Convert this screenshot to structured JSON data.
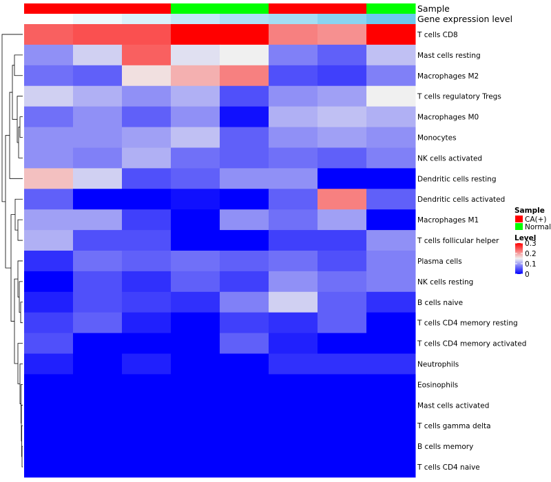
{
  "chart_data": {
    "type": "heatmap",
    "annotation_labels": [
      "Sample",
      "Gene expression level"
    ],
    "sample_groups": [
      "CA(+)",
      "CA(+)",
      "CA(+)",
      "Normal",
      "Normal",
      "CA(+)",
      "CA(+)",
      "Normal"
    ],
    "gene_expression_level": [
      0.0,
      0.12,
      0.25,
      0.4,
      0.55,
      0.62,
      0.8,
      1.0
    ],
    "rows": [
      "T cells CD8",
      "Mast cells resting",
      "Macrophages M2",
      "T cells regulatory  Tregs",
      "Macrophages M0",
      "Monocytes",
      "NK cells activated",
      "Dendritic cells resting",
      "Dendritic cells activated",
      "Macrophages M1",
      "T cells follicular helper",
      "Plasma cells",
      "NK cells resting",
      "B cells naive",
      "T cells CD4 memory resting",
      "T cells CD4 memory activated",
      "Neutrophils",
      "Eosinophils",
      "Mast cells activated",
      "T cells gamma delta",
      "B cells memory",
      "T cells CD4 naive"
    ],
    "values": [
      [
        0.24,
        0.25,
        0.25,
        0.3,
        0.3,
        0.22,
        0.21,
        0.3
      ],
      [
        0.09,
        0.13,
        0.24,
        0.14,
        0.15,
        0.08,
        0.06,
        0.12
      ],
      [
        0.07,
        0.06,
        0.16,
        0.19,
        0.22,
        0.05,
        0.04,
        0.08
      ],
      [
        0.13,
        0.11,
        0.09,
        0.11,
        0.05,
        0.09,
        0.1,
        0.15
      ],
      [
        0.07,
        0.09,
        0.06,
        0.09,
        0.01,
        0.11,
        0.12,
        0.11
      ],
      [
        0.09,
        0.09,
        0.1,
        0.12,
        0.06,
        0.09,
        0.1,
        0.09
      ],
      [
        0.09,
        0.08,
        0.11,
        0.07,
        0.06,
        0.07,
        0.06,
        0.08
      ],
      [
        0.18,
        0.13,
        0.05,
        0.06,
        0.09,
        0.09,
        0.0,
        0.0
      ],
      [
        0.06,
        0.0,
        0.0,
        0.01,
        0.0,
        0.06,
        0.22,
        0.06
      ],
      [
        0.1,
        0.1,
        0.04,
        0.0,
        0.09,
        0.07,
        0.1,
        0.0
      ],
      [
        0.11,
        0.05,
        0.05,
        0.0,
        0.0,
        0.04,
        0.04,
        0.09
      ],
      [
        0.03,
        0.07,
        0.06,
        0.07,
        0.06,
        0.07,
        0.05,
        0.08
      ],
      [
        0.0,
        0.05,
        0.03,
        0.06,
        0.04,
        0.09,
        0.07,
        0.08
      ],
      [
        0.02,
        0.05,
        0.04,
        0.03,
        0.08,
        0.13,
        0.06,
        0.03
      ],
      [
        0.04,
        0.06,
        0.02,
        0.0,
        0.04,
        0.03,
        0.06,
        0.0
      ],
      [
        0.05,
        0.0,
        0.0,
        0.0,
        0.06,
        0.02,
        0.0,
        0.0
      ],
      [
        0.02,
        0.0,
        0.02,
        0.0,
        0.0,
        0.03,
        0.03,
        0.03
      ],
      [
        0.0,
        0.0,
        0.0,
        0.0,
        0.0,
        0.0,
        0.0,
        0.0
      ],
      [
        0.0,
        0.0,
        0.0,
        0.0,
        0.0,
        0.0,
        0.0,
        0.0
      ],
      [
        0.0,
        0.0,
        0.0,
        0.0,
        0.0,
        0.0,
        0.0,
        0.0
      ],
      [
        0.0,
        0.0,
        0.0,
        0.0,
        0.0,
        0.0,
        0.0,
        0.0
      ],
      [
        0.0,
        0.0,
        0.0,
        0.0,
        0.0,
        0.0,
        0.0,
        0.0
      ]
    ],
    "color_scale": {
      "min": 0,
      "mid": 0.15,
      "max": 0.3,
      "low": "#0000FF",
      "mid_color": "#F0F0F0",
      "high": "#FF0000"
    },
    "legend": {
      "sample_title": "Sample",
      "sample_items": [
        {
          "label": "CA(+)",
          "color": "#FF0000"
        },
        {
          "label": "Normal",
          "color": "#00FF00"
        }
      ],
      "level_title": "Level",
      "level_ticks": [
        {
          "label": "0.3",
          "value": 0.3
        },
        {
          "label": "0.2",
          "value": 0.2
        },
        {
          "label": "0.1",
          "value": 0.1
        },
        {
          "label": "0",
          "value": 0
        }
      ],
      "placement": "right"
    },
    "expression_colors": {
      "low": "#FFFFFF",
      "high": "#6CC9EE"
    },
    "row_dendrogram": "left",
    "column_dendrogram": "none"
  }
}
